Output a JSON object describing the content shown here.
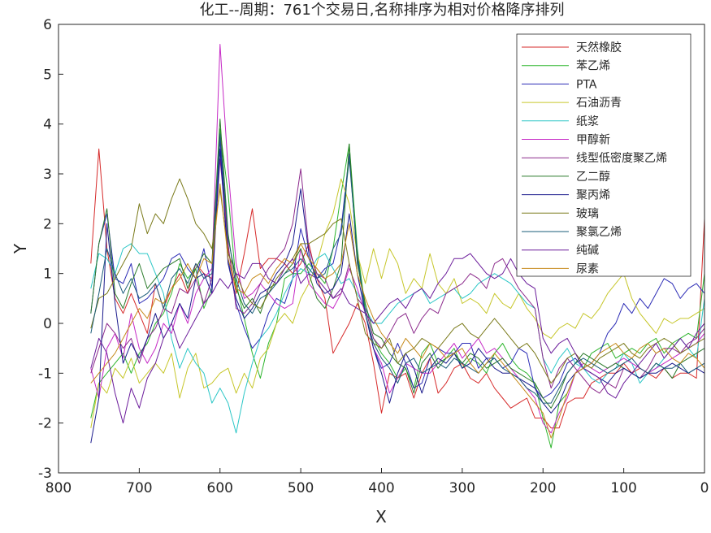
{
  "chart_data": {
    "type": "line",
    "title": "化工--周期：761个交易日,名称排序为相对价格降序排列",
    "xlabel": "X",
    "ylabel": "Y",
    "xlim": [
      800,
      0
    ],
    "ylim": [
      -3,
      6
    ],
    "x_reversed": true,
    "grid": false,
    "legend_position": "top-right",
    "x_ticks": [
      800,
      700,
      600,
      500,
      400,
      300,
      200,
      100,
      0
    ],
    "y_ticks": [
      -3,
      -2,
      -1,
      0,
      1,
      2,
      3,
      4,
      5,
      6
    ],
    "x_tick_labels": [
      "800",
      "700",
      "600",
      "500",
      "400",
      "300",
      "200",
      "100",
      "0"
    ],
    "y_tick_labels": [
      "-3",
      "-2",
      "-1",
      "0",
      "1",
      "2",
      "3",
      "4",
      "5",
      "6"
    ],
    "x": [
      760,
      750,
      740,
      730,
      720,
      710,
      700,
      690,
      680,
      670,
      660,
      650,
      640,
      630,
      620,
      610,
      600,
      590,
      580,
      570,
      560,
      550,
      540,
      530,
      520,
      510,
      500,
      490,
      480,
      470,
      460,
      450,
      440,
      430,
      420,
      410,
      400,
      390,
      380,
      370,
      360,
      350,
      340,
      330,
      320,
      310,
      300,
      290,
      280,
      270,
      260,
      250,
      240,
      230,
      220,
      210,
      200,
      190,
      180,
      170,
      160,
      150,
      140,
      130,
      120,
      110,
      100,
      90,
      80,
      70,
      60,
      50,
      40,
      30,
      20,
      10,
      0
    ],
    "series": [
      {
        "name": "天然橡胶",
        "color": "#d62a2a",
        "values": [
          1.2,
          3.5,
          1.5,
          0.5,
          0.2,
          0.6,
          0.2,
          -0.2,
          0.8,
          0.3,
          0.7,
          1.0,
          0.6,
          1.2,
          1.0,
          0.9,
          3.9,
          1.5,
          0.6,
          1.4,
          2.3,
          1.1,
          1.3,
          1.3,
          1.2,
          1.0,
          1.2,
          1.6,
          0.9,
          0.5,
          -0.6,
          -0.3,
          0.0,
          0.4,
          0.0,
          -0.8,
          -1.8,
          -1.0,
          -1.1,
          -1.0,
          -1.5,
          -1.0,
          -0.7,
          -1.4,
          -1.2,
          -0.9,
          -0.8,
          -1.1,
          -1.2,
          -1.0,
          -1.3,
          -1.5,
          -1.7,
          -1.6,
          -1.5,
          -1.9,
          -1.9,
          -2.1,
          -2.1,
          -1.6,
          -1.5,
          -1.5,
          -1.2,
          -1.1,
          -1.0,
          -1.0,
          -0.8,
          -1.0,
          -0.9,
          -1.0,
          -1.1,
          -0.9,
          -1.1,
          -1.0,
          -1.0,
          -1.1,
          2.1
        ]
      },
      {
        "name": "苯乙烯",
        "color": "#2db52d",
        "values": [
          -1.9,
          -1.2,
          -1.0,
          -0.8,
          -0.6,
          -1.0,
          -0.6,
          -0.4,
          0.0,
          0.2,
          0.6,
          1.2,
          0.9,
          1.1,
          0.3,
          0.7,
          3.9,
          2.6,
          0.8,
          0.1,
          -0.6,
          -1.1,
          -0.4,
          0.0,
          0.9,
          1.0,
          1.0,
          1.2,
          1.0,
          0.8,
          1.5,
          2.6,
          3.6,
          1.5,
          0.3,
          -0.3,
          -0.6,
          -0.8,
          -1.1,
          -0.9,
          -1.3,
          -0.6,
          -0.4,
          -0.8,
          -0.7,
          -0.5,
          -0.9,
          -0.7,
          -0.8,
          -1.0,
          -0.6,
          -0.4,
          -0.7,
          -0.9,
          -1.0,
          -1.2,
          -1.9,
          -2.5,
          -1.6,
          -1.4,
          -1.0,
          -0.9,
          -0.6,
          -0.5,
          -0.4,
          -0.7,
          -0.6,
          -0.5,
          -0.6,
          -0.4,
          -0.3,
          -0.6,
          -0.4,
          -0.3,
          -0.2,
          -0.3,
          1.0
        ]
      },
      {
        "name": "PTA",
        "color": "#2b2bb5",
        "values": [
          0.2,
          1.6,
          2.2,
          0.9,
          0.8,
          1.2,
          0.4,
          0.5,
          0.7,
          0.9,
          1.3,
          1.4,
          1.1,
          0.9,
          1.5,
          0.7,
          3.7,
          1.3,
          0.4,
          -0.1,
          -0.5,
          -0.3,
          0.2,
          0.5,
          0.4,
          0.9,
          1.9,
          1.3,
          0.9,
          1.1,
          1.2,
          1.9,
          3.4,
          1.3,
          0.2,
          -0.5,
          -0.9,
          -0.8,
          -0.4,
          -0.8,
          -1.3,
          -1.2,
          -0.7,
          -0.5,
          -0.6,
          -0.6,
          -0.4,
          -0.4,
          -0.9,
          -0.7,
          -0.7,
          -0.9,
          -0.8,
          -0.5,
          -0.6,
          -1.3,
          -1.5,
          -1.4,
          -1.2,
          -0.8,
          -0.7,
          -0.9,
          -0.8,
          -0.6,
          -0.2,
          0.0,
          0.4,
          0.2,
          0.5,
          0.3,
          0.6,
          0.9,
          0.8,
          0.5,
          0.7,
          0.8,
          0.6
        ]
      },
      {
        "name": "石油沥青",
        "color": "#c6c62a",
        "values": [
          -2.1,
          -1.2,
          -1.4,
          -0.9,
          -1.1,
          -0.7,
          -1.2,
          -1.0,
          -0.8,
          -1.0,
          -0.6,
          -1.5,
          -0.9,
          -0.6,
          -1.3,
          -1.2,
          -1.0,
          -0.9,
          -1.4,
          -1.0,
          -1.3,
          -0.7,
          -0.5,
          0.0,
          0.2,
          0.0,
          0.5,
          0.8,
          1.2,
          1.8,
          2.2,
          2.9,
          2.4,
          1.4,
          0.8,
          1.5,
          0.9,
          1.5,
          1.2,
          0.6,
          0.9,
          0.7,
          1.4,
          0.8,
          0.6,
          0.9,
          0.4,
          0.5,
          0.4,
          0.2,
          0.6,
          0.4,
          0.3,
          0.6,
          0.3,
          0.1,
          -0.2,
          -0.3,
          -0.1,
          0.0,
          -0.1,
          0.2,
          0.1,
          0.3,
          0.6,
          0.8,
          1.0,
          0.5,
          0.2,
          0.0,
          -0.2,
          0.1,
          0.0,
          0.1,
          0.1,
          0.2,
          0.3
        ]
      },
      {
        "name": "纸浆",
        "color": "#2ac6c6",
        "values": [
          0.7,
          1.4,
          1.3,
          1.0,
          1.5,
          1.6,
          1.4,
          1.4,
          1.0,
          0.6,
          -0.3,
          -0.9,
          -0.5,
          -0.8,
          -1.0,
          -1.6,
          -1.3,
          -1.6,
          -2.2,
          -1.4,
          -0.8,
          -0.3,
          -0.1,
          0.2,
          0.6,
          0.9,
          1.1,
          1.0,
          1.3,
          1.4,
          1.1,
          0.8,
          0.9,
          0.6,
          0.3,
          0.0,
          0.0,
          0.2,
          0.4,
          0.5,
          0.6,
          0.7,
          0.4,
          0.5,
          0.6,
          0.7,
          0.5,
          0.6,
          0.8,
          0.9,
          1.0,
          0.9,
          0.8,
          0.6,
          0.4,
          0.3,
          -0.7,
          -1.0,
          -0.7,
          -0.5,
          -0.8,
          -0.9,
          -1.1,
          -1.2,
          -1.0,
          -0.9,
          -0.6,
          -0.8,
          -1.2,
          -1.0,
          -0.9,
          -0.7,
          -0.5,
          -0.3,
          -0.5,
          -0.7,
          0.5
        ]
      },
      {
        "name": "甲醇新",
        "color": "#c62ac6",
        "values": [
          -0.9,
          -1.5,
          -0.5,
          -0.2,
          -0.7,
          0.2,
          -0.5,
          -0.8,
          -0.5,
          0.0,
          -0.2,
          0.4,
          0.0,
          0.6,
          0.9,
          1.1,
          5.6,
          3.1,
          1.2,
          0.5,
          0.6,
          0.8,
          0.6,
          0.4,
          0.3,
          0.4,
          1.5,
          0.8,
          0.6,
          0.4,
          0.3,
          0.6,
          1.1,
          0.7,
          0.2,
          -0.5,
          -0.8,
          -1.4,
          -1.1,
          -0.8,
          -0.9,
          -1.0,
          -1.0,
          -0.8,
          -0.6,
          -0.4,
          -0.7,
          -0.5,
          -0.3,
          -0.6,
          -0.5,
          -0.7,
          -0.9,
          -1.1,
          -1.3,
          -1.5,
          -2.0,
          -2.2,
          -1.8,
          -1.5,
          -1.0,
          -0.8,
          -0.9,
          -1.0,
          -0.9,
          -0.8,
          -0.7,
          -0.8,
          -0.9,
          -1.0,
          -0.9,
          -0.8,
          -0.7,
          -0.6,
          -0.5,
          -0.4,
          -0.2
        ]
      },
      {
        "name": "线型低密度聚乙烯",
        "color": "#8c2a8c",
        "values": [
          -1.0,
          -0.5,
          0.0,
          -0.2,
          -0.5,
          -0.3,
          -0.8,
          -0.3,
          -0.1,
          0.3,
          0.2,
          0.7,
          0.6,
          0.9,
          0.4,
          0.9,
          3.3,
          1.6,
          0.3,
          0.2,
          0.4,
          0.8,
          1.1,
          1.3,
          1.5,
          2.0,
          3.1,
          1.5,
          1.0,
          0.9,
          0.5,
          0.6,
          1.2,
          0.5,
          0.3,
          -0.3,
          -0.5,
          -0.2,
          0.1,
          0.2,
          -0.2,
          0.1,
          0.3,
          0.2,
          0.6,
          0.7,
          0.8,
          1.0,
          0.9,
          0.7,
          1.2,
          1.3,
          1.0,
          0.7,
          0.5,
          0.3,
          -0.7,
          -1.3,
          -0.9,
          -0.7,
          -0.9,
          -1.1,
          -1.3,
          -1.4,
          -1.2,
          -1.3,
          -0.9,
          -1.0,
          -1.1,
          -0.9,
          -0.6,
          -0.5,
          -0.5,
          -0.6,
          -0.4,
          -0.3,
          -0.1
        ]
      },
      {
        "name": "乙二醇",
        "color": "#2a7a2a",
        "values": [
          0.2,
          1.6,
          2.3,
          0.6,
          0.3,
          0.8,
          1.2,
          0.7,
          0.9,
          1.1,
          1.2,
          1.3,
          0.7,
          1.1,
          1.4,
          1.2,
          4.1,
          1.8,
          0.7,
          0.3,
          0.5,
          0.2,
          0.7,
          0.8,
          1.0,
          1.2,
          1.5,
          1.0,
          0.5,
          0.3,
          0.7,
          1.2,
          3.6,
          1.2,
          0.4,
          -0.2,
          -0.3,
          -0.6,
          -0.8,
          -0.9,
          -1.4,
          -0.8,
          -0.6,
          -0.9,
          -0.7,
          -0.6,
          -0.8,
          -0.6,
          -0.7,
          -0.9,
          -0.8,
          -0.7,
          -0.9,
          -1.0,
          -1.1,
          -1.2,
          -1.5,
          -1.7,
          -1.4,
          -1.0,
          -0.8,
          -0.6,
          -0.7,
          -0.8,
          -0.9,
          -0.8,
          -0.9,
          -1.0,
          -1.1,
          -1.0,
          -0.8,
          -0.9,
          -1.1,
          -0.8,
          -0.7,
          -0.6,
          -0.5
        ]
      },
      {
        "name": "聚丙烯",
        "color": "#1a1a8c",
        "values": [
          -2.4,
          -1.5,
          2.0,
          0.4,
          -0.8,
          -0.4,
          -0.7,
          -0.3,
          0.2,
          -0.3,
          0.0,
          0.4,
          0.1,
          0.9,
          1.0,
          0.6,
          3.5,
          1.2,
          0.5,
          0.1,
          0.3,
          0.6,
          0.7,
          1.0,
          1.2,
          1.6,
          2.7,
          1.4,
          0.8,
          0.6,
          0.7,
          1.0,
          2.2,
          1.0,
          0.2,
          -0.5,
          -1.0,
          -1.6,
          -1.0,
          -0.6,
          -0.9,
          -1.4,
          -0.9,
          -0.7,
          -0.8,
          -0.6,
          -0.9,
          -0.8,
          -0.5,
          -0.7,
          -0.9,
          -1.0,
          -1.0,
          -1.1,
          -1.2,
          -1.3,
          -1.6,
          -1.8,
          -1.6,
          -1.2,
          -1.0,
          -0.9,
          -1.0,
          -1.1,
          -1.2,
          -1.0,
          -0.9,
          -1.0,
          -1.1,
          -1.0,
          -1.0,
          -0.9,
          -0.8,
          -0.9,
          -1.0,
          -0.9,
          -1.0
        ]
      },
      {
        "name": "玻璃",
        "color": "#7a7a1a",
        "values": [
          -0.1,
          0.5,
          0.6,
          0.9,
          1.2,
          1.5,
          2.4,
          1.8,
          2.2,
          2.0,
          2.5,
          2.9,
          2.5,
          2.0,
          1.8,
          1.5,
          2.7,
          1.4,
          1.0,
          0.6,
          0.4,
          0.3,
          0.6,
          0.9,
          1.1,
          1.3,
          1.6,
          1.6,
          1.7,
          1.8,
          2.0,
          2.1,
          1.2,
          0.5,
          -0.2,
          -0.4,
          -0.5,
          -0.3,
          -0.8,
          -0.6,
          -0.5,
          -0.3,
          -0.4,
          -0.5,
          -0.3,
          -0.1,
          0.0,
          -0.2,
          -0.3,
          -0.1,
          0.1,
          -0.1,
          -0.3,
          -0.5,
          -0.4,
          -0.6,
          -0.9,
          -1.2,
          -1.0,
          -0.7,
          -0.6,
          -0.8,
          -0.9,
          -0.7,
          -0.6,
          -0.5,
          -0.4,
          -0.6,
          -0.7,
          -0.5,
          -0.4,
          -0.3,
          -0.4,
          -0.6,
          -0.5,
          -0.4,
          -0.3
        ]
      },
      {
        "name": "聚氯乙烯",
        "color": "#1a5c7a",
        "values": [
          -0.2,
          0.6,
          1.5,
          1.0,
          0.6,
          0.9,
          0.5,
          0.6,
          0.8,
          0.3,
          0.9,
          1.1,
          0.8,
          1.2,
          0.9,
          1.0,
          3.8,
          1.7,
          0.9,
          0.4,
          0.2,
          0.5,
          0.6,
          0.8,
          1.0,
          1.1,
          1.3,
          1.1,
          0.9,
          1.0,
          1.5,
          1.8,
          3.3,
          1.4,
          0.2,
          -0.4,
          -0.7,
          -0.9,
          -1.2,
          -0.8,
          -0.7,
          -1.0,
          -0.9,
          -0.8,
          -0.9,
          -0.7,
          -0.8,
          -0.9,
          -1.0,
          -0.8,
          -0.7,
          -0.9,
          -1.0,
          -1.1,
          -1.3,
          -1.4,
          -1.6,
          -1.6,
          -1.3,
          -1.0,
          -0.8,
          -0.7,
          -0.8,
          -0.9,
          -1.0,
          -0.9,
          -0.8,
          -0.7,
          -0.9,
          -1.0,
          -0.8,
          -0.9,
          -0.9,
          -0.8,
          -1.0,
          -0.9,
          -0.8
        ]
      },
      {
        "name": "纯碱",
        "color": "#6a1a9a",
        "values": [
          -0.9,
          -0.3,
          -0.6,
          -1.4,
          -2.0,
          -1.3,
          -1.7,
          -1.1,
          -0.8,
          -0.3,
          0.0,
          -0.5,
          -0.2,
          0.1,
          0.4,
          0.6,
          0.9,
          0.7,
          1.0,
          0.9,
          1.2,
          1.2,
          0.9,
          0.8,
          1.1,
          1.3,
          0.8,
          1.0,
          0.9,
          0.7,
          0.5,
          0.7,
          0.4,
          0.3,
          0.2,
          0.0,
          0.2,
          0.4,
          0.5,
          0.3,
          0.6,
          0.7,
          0.5,
          0.8,
          1.0,
          1.3,
          1.3,
          1.4,
          1.2,
          1.0,
          0.9,
          1.0,
          1.3,
          1.0,
          0.8,
          0.7,
          -0.3,
          -0.6,
          -0.4,
          -0.3,
          -0.6,
          -0.9,
          -1.0,
          -1.1,
          -1.4,
          -1.5,
          -1.2,
          -1.0,
          -0.8,
          -0.6,
          -0.4,
          -0.7,
          -0.5,
          -0.3,
          -0.5,
          -0.2,
          0.0
        ]
      },
      {
        "name": "尿素",
        "color": "#c68a1a",
        "values": [
          -1.2,
          -1.0,
          -0.8,
          -0.6,
          -0.3,
          0.0,
          0.3,
          0.1,
          0.5,
          0.4,
          0.7,
          0.9,
          1.2,
          0.9,
          1.3,
          1.2,
          2.8,
          1.3,
          0.7,
          0.6,
          0.9,
          1.0,
          0.8,
          1.1,
          1.3,
          1.2,
          1.6,
          1.3,
          1.1,
          0.9,
          1.0,
          1.2,
          2.0,
          1.0,
          0.5,
          0.1,
          -0.2,
          -0.4,
          -0.6,
          -0.3,
          -0.5,
          -0.7,
          -0.4,
          -0.5,
          -0.7,
          -0.6,
          -0.5,
          -0.8,
          -1.0,
          -0.8,
          -0.6,
          -0.8,
          -1.0,
          -1.2,
          -1.4,
          -1.6,
          -1.8,
          -2.3,
          -1.9,
          -1.4,
          -1.0,
          -0.9,
          -0.8,
          -0.6,
          -0.5,
          -0.4,
          -0.6,
          -0.7,
          -0.5,
          -0.4,
          -0.6,
          -0.5,
          -0.7,
          -0.8,
          -0.6,
          -0.7,
          -0.9
        ]
      }
    ]
  }
}
